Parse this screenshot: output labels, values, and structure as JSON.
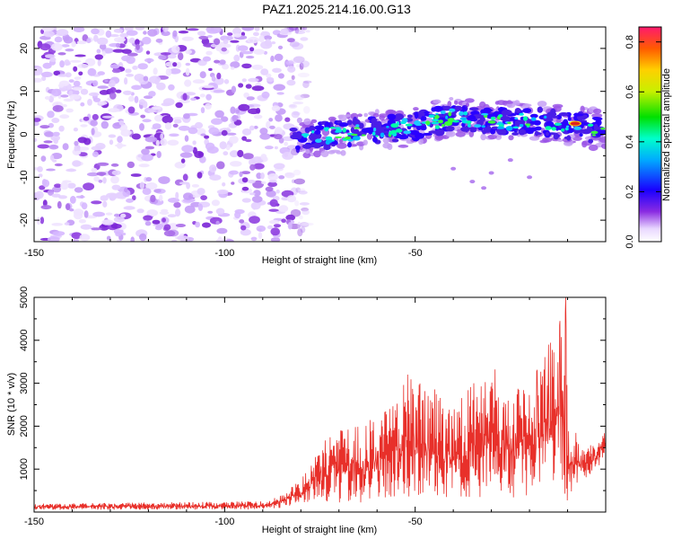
{
  "title": "PAZ1.2025.214.16.00.G13",
  "chart_data": [
    {
      "type": "heatmap",
      "xlabel": "Height of straight line (km)",
      "ylabel": "Frequency (Hz)",
      "xlim": [
        -150,
        0
      ],
      "ylim": [
        -25,
        25
      ],
      "x_ticks": [
        -150,
        -100,
        -50
      ],
      "y_ticks": [
        -20,
        -10,
        0,
        10,
        20
      ],
      "colorbar": {
        "label": "Normalized spectral amplitude",
        "range": [
          0,
          0.86
        ],
        "ticks": [
          0.0,
          0.2,
          0.4,
          0.6,
          0.8
        ]
      },
      "regions": [
        {
          "x_range": [
            -150,
            -80
          ],
          "description": "broad low-amplitude noise spread over all frequencies",
          "amplitude": 0.1
        },
        {
          "x_range": [
            -80,
            0
          ],
          "description": "narrow signal band near 0 Hz drifting upward to ~4 Hz",
          "amplitude": 0.4
        }
      ],
      "signal_center_freq": [
        [
          -82,
          -1
        ],
        [
          -70,
          0
        ],
        [
          -60,
          1
        ],
        [
          -50,
          2
        ],
        [
          -40,
          4
        ],
        [
          -30,
          3
        ],
        [
          -20,
          3
        ],
        [
          -10,
          2
        ],
        [
          -8,
          2.5
        ],
        [
          -5,
          1.5
        ],
        [
          0,
          1
        ]
      ],
      "peak": {
        "x": -8,
        "y": 2.5,
        "amplitude": 0.86
      }
    },
    {
      "type": "line",
      "xlabel": "Height of straight line (km)",
      "ylabel": "SNR (10 * v/v)",
      "xlim": [
        -150,
        0
      ],
      "ylim": [
        0,
        5000
      ],
      "x_ticks": [
        -150,
        -100,
        -50
      ],
      "y_ticks": [
        1000,
        2000,
        3000,
        4000,
        5000
      ],
      "color": "#e8302a",
      "envelope": [
        {
          "x": -150,
          "low": 50,
          "high": 200
        },
        {
          "x": -90,
          "low": 60,
          "high": 250
        },
        {
          "x": -85,
          "low": 100,
          "high": 400
        },
        {
          "x": -81,
          "low": 150,
          "high": 700
        },
        {
          "x": -78,
          "low": 200,
          "high": 1100
        },
        {
          "x": -75,
          "low": 300,
          "high": 1500
        },
        {
          "x": -72,
          "low": 200,
          "high": 1900
        },
        {
          "x": -65,
          "low": 200,
          "high": 2000
        },
        {
          "x": -60,
          "low": 200,
          "high": 2300
        },
        {
          "x": -55,
          "low": 300,
          "high": 2600
        },
        {
          "x": -52,
          "low": 300,
          "high": 3200
        },
        {
          "x": -45,
          "low": 400,
          "high": 3000
        },
        {
          "x": -40,
          "low": 300,
          "high": 2400
        },
        {
          "x": -35,
          "low": 300,
          "high": 3000
        },
        {
          "x": -29,
          "low": 400,
          "high": 3300
        },
        {
          "x": -25,
          "low": 300,
          "high": 2800
        },
        {
          "x": -18,
          "low": 400,
          "high": 3300
        },
        {
          "x": -15,
          "low": 400,
          "high": 3900
        },
        {
          "x": -12,
          "low": 300,
          "high": 4400
        },
        {
          "x": -10.5,
          "low": 400,
          "high": 5000
        },
        {
          "x": -10,
          "low": 200,
          "high": 2000
        },
        {
          "x": -8,
          "low": 600,
          "high": 1900
        },
        {
          "x": -5,
          "low": 800,
          "high": 1500
        },
        {
          "x": 0,
          "low": 1200,
          "high": 1900
        }
      ],
      "peaks": [
        {
          "x": -52,
          "y": 3200
        },
        {
          "x": -29,
          "y": 3320
        },
        {
          "x": -18,
          "y": 3300
        },
        {
          "x": -15,
          "y": 3900
        },
        {
          "x": -12,
          "y": 4450
        },
        {
          "x": -10.5,
          "y": 5000
        }
      ]
    }
  ]
}
